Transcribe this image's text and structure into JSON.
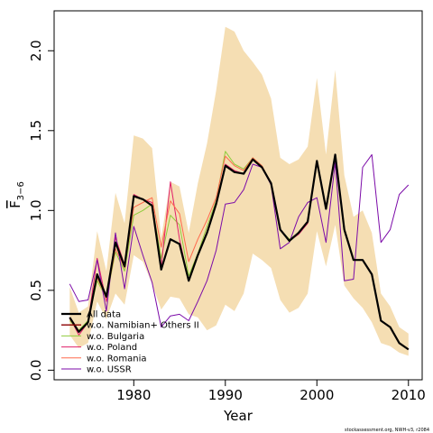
{
  "chart_data": {
    "type": "line",
    "xlabel": "Year",
    "ylabel": "F",
    "ylabel_sub": "3−6",
    "xlim": [
      1971.3,
      2011.5
    ],
    "ylim": [
      -0.06,
      2.25
    ],
    "xticks": [
      1980,
      1990,
      2000,
      2010
    ],
    "yticks": [
      "0.0",
      "0.5",
      "1.0",
      "1.5",
      "2.0"
    ],
    "grid": false,
    "legend_position": "bottom-left",
    "footnote": "stockassessment.org, NWH-v3, r2084",
    "band": {
      "color": "#f5deb3",
      "x": [
        1973,
        1974,
        1975,
        1976,
        1977,
        1978,
        1979,
        1980,
        1981,
        1982,
        1983,
        1984,
        1985,
        1986,
        1987,
        1988,
        1989,
        1990,
        1991,
        1992,
        1993,
        1994,
        1995,
        1996,
        1997,
        1998,
        1999,
        2000,
        2001,
        2002,
        2003,
        2004,
        2005,
        2006,
        2007,
        2008,
        2009,
        2010
      ],
      "upper": [
        0.52,
        0.36,
        0.4,
        0.87,
        0.62,
        1.11,
        0.92,
        1.47,
        1.45,
        1.39,
        0.83,
        1.18,
        1.15,
        0.86,
        1.17,
        1.42,
        1.75,
        2.15,
        2.12,
        2.0,
        1.93,
        1.85,
        1.7,
        1.33,
        1.29,
        1.32,
        1.4,
        1.83,
        1.35,
        1.88,
        1.22,
        0.96,
        1.0,
        0.86,
        0.48,
        0.4,
        0.27,
        0.23
      ],
      "lower": [
        0.22,
        0.14,
        0.17,
        0.43,
        0.32,
        0.48,
        0.41,
        0.72,
        0.68,
        0.54,
        0.38,
        0.46,
        0.45,
        0.35,
        0.33,
        0.25,
        0.28,
        0.41,
        0.37,
        0.48,
        0.73,
        0.69,
        0.64,
        0.44,
        0.36,
        0.39,
        0.48,
        0.87,
        0.65,
        0.91,
        0.53,
        0.45,
        0.39,
        0.3,
        0.17,
        0.15,
        0.11,
        0.09
      ]
    },
    "x": [
      1973,
      1974,
      1975,
      1976,
      1977,
      1978,
      1979,
      1980,
      1981,
      1982,
      1983,
      1984,
      1985,
      1986,
      1987,
      1988,
      1989,
      1990,
      1991,
      1992,
      1993,
      1994,
      1995,
      1996,
      1997,
      1998,
      1999,
      2000,
      2001,
      2002,
      2003,
      2004,
      2005,
      2006,
      2007,
      2008,
      2009,
      2010
    ],
    "series": [
      {
        "name": "All data",
        "color": "#000000",
        "width": 2.2,
        "values": [
          0.33,
          0.24,
          0.3,
          0.6,
          0.46,
          0.8,
          0.65,
          1.09,
          1.07,
          1.03,
          0.63,
          0.82,
          0.79,
          0.56,
          0.72,
          0.86,
          1.04,
          1.28,
          1.24,
          1.23,
          1.32,
          1.27,
          1.17,
          0.88,
          0.81,
          0.86,
          0.93,
          1.31,
          1.01,
          1.35,
          0.88,
          0.69,
          0.69,
          0.6,
          0.31,
          0.27,
          0.17,
          0.13
        ]
      },
      {
        "name": "w.o. Namibian+ Others II",
        "color": "#8b0000",
        "width": 1.3,
        "values": [
          0.33,
          0.24,
          0.3,
          0.6,
          0.46,
          0.8,
          0.65,
          1.09,
          1.07,
          1.03,
          0.63,
          0.82,
          0.79,
          0.56,
          0.72,
          0.86,
          1.04,
          1.28,
          1.24,
          1.23,
          1.32,
          1.27,
          1.17,
          0.88,
          0.81,
          0.86,
          0.93,
          1.31,
          1.01,
          1.35,
          0.88,
          0.69,
          0.69,
          0.6,
          0.31,
          0.27,
          0.17,
          0.13
        ]
      },
      {
        "name": "w.o. Bulgaria",
        "color": "#8fcc3c",
        "width": 1,
        "values": [
          0.31,
          0.25,
          0.31,
          0.56,
          0.45,
          0.74,
          0.62,
          0.97,
          1.0,
          1.04,
          0.7,
          0.97,
          0.91,
          0.59,
          0.73,
          0.9,
          1.06,
          1.37,
          1.29,
          1.26,
          1.33,
          1.28,
          1.17,
          0.88,
          0.82,
          0.86,
          0.92,
          1.3,
          1.01,
          1.34,
          0.87,
          0.69,
          0.69,
          0.6,
          0.31,
          0.27,
          0.17,
          0.13
        ]
      },
      {
        "name": "w.o. Poland",
        "color": "#e0206a",
        "width": 1,
        "values": [
          0.33,
          0.22,
          0.3,
          0.7,
          0.43,
          0.83,
          0.66,
          1.1,
          1.07,
          1.05,
          0.65,
          1.18,
          0.82,
          0.56,
          0.72,
          0.87,
          1.05,
          1.29,
          1.25,
          1.23,
          1.32,
          1.27,
          1.17,
          0.88,
          0.81,
          0.85,
          0.92,
          1.31,
          1.01,
          1.35,
          0.87,
          0.69,
          0.69,
          0.6,
          0.31,
          0.27,
          0.17,
          0.13
        ]
      },
      {
        "name": "w.o. Romania",
        "color": "#ff6a4d",
        "width": 1,
        "values": [
          0.32,
          0.24,
          0.3,
          0.58,
          0.45,
          0.76,
          0.64,
          1.02,
          1.05,
          1.08,
          0.77,
          1.06,
          0.98,
          0.68,
          0.82,
          0.94,
          1.08,
          1.34,
          1.28,
          1.25,
          1.33,
          1.28,
          1.17,
          0.88,
          0.81,
          0.86,
          0.93,
          1.31,
          1.01,
          1.35,
          0.88,
          0.69,
          0.69,
          0.6,
          0.31,
          0.27,
          0.17,
          0.13
        ]
      },
      {
        "name": "w.o. USSR",
        "color": "#7b0aa8",
        "width": 1,
        "values": [
          0.54,
          0.43,
          0.44,
          0.69,
          0.37,
          0.86,
          0.51,
          0.9,
          0.72,
          0.55,
          0.27,
          0.34,
          0.35,
          0.31,
          0.43,
          0.56,
          0.75,
          1.04,
          1.05,
          1.13,
          1.29,
          1.27,
          1.16,
          0.76,
          0.8,
          0.96,
          1.05,
          1.08,
          0.8,
          1.3,
          0.56,
          0.57,
          1.27,
          1.35,
          0.8,
          0.88,
          1.1,
          1.16
        ]
      }
    ]
  }
}
